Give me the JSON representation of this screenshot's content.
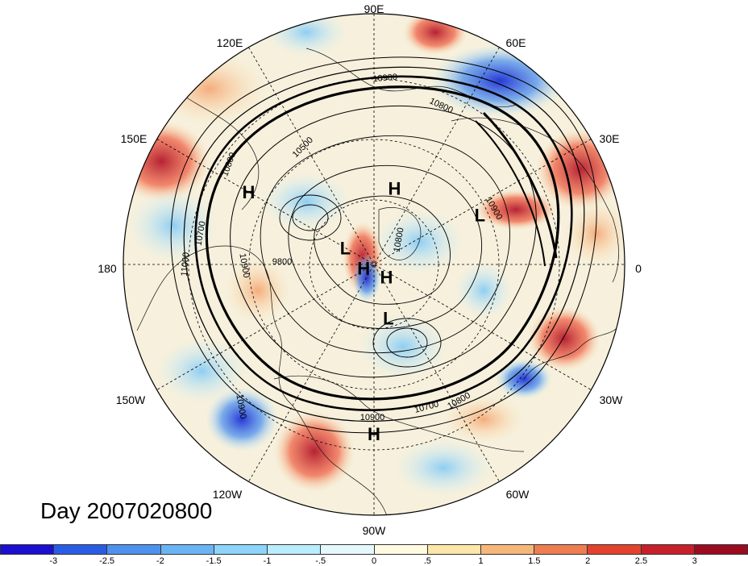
{
  "map": {
    "title_text": "Day 2007020800",
    "projection": "north-polar-stereographic",
    "longitude_labels": [
      "90E",
      "60E",
      "30E",
      "0",
      "30W",
      "60W",
      "90W",
      "120W",
      "150W",
      "180",
      "150E",
      "120E"
    ],
    "pressure_systems": [
      {
        "type": "H",
        "lon": 75,
        "lat": 55
      },
      {
        "type": "H",
        "lon": 150,
        "lat": 30
      },
      {
        "type": "L",
        "lon": 25,
        "lat": 40
      },
      {
        "type": "L",
        "lon": 150,
        "lat": 75
      },
      {
        "type": "H",
        "lon": -160,
        "lat": 85
      },
      {
        "type": "H",
        "lon": -45,
        "lat": 82
      },
      {
        "type": "L",
        "lon": -75,
        "lat": 65
      },
      {
        "type": "H",
        "lon": -90,
        "lat": 22
      }
    ],
    "contour_labels": [
      "10900",
      "10800",
      "10500",
      "10800",
      "10700",
      "10900",
      "11000",
      "9800",
      "10900",
      "10800",
      "10700",
      "10900",
      "10800",
      "10900"
    ],
    "colors": {
      "continents": "#000000",
      "grid": "#000000",
      "strong_positive": "#a50f15",
      "strong_negative": "#1a1fd6"
    }
  },
  "colorbar": {
    "colors": [
      "#1c0fd0",
      "#2b5ce6",
      "#4f92ee",
      "#6bb4f4",
      "#8cd4fa",
      "#b9ecfd",
      "#e4f8fe",
      "#fffbe0",
      "#fde7a8",
      "#f7b77b",
      "#ee7d52",
      "#e3432e",
      "#c7202b",
      "#9b0c20"
    ],
    "tick_labels": [
      "-3",
      "-2.5",
      "-2",
      "-1.5",
      "-1",
      "-.5",
      "0",
      ".5",
      "1",
      "1.5",
      "2",
      "2.5",
      "3"
    ]
  }
}
